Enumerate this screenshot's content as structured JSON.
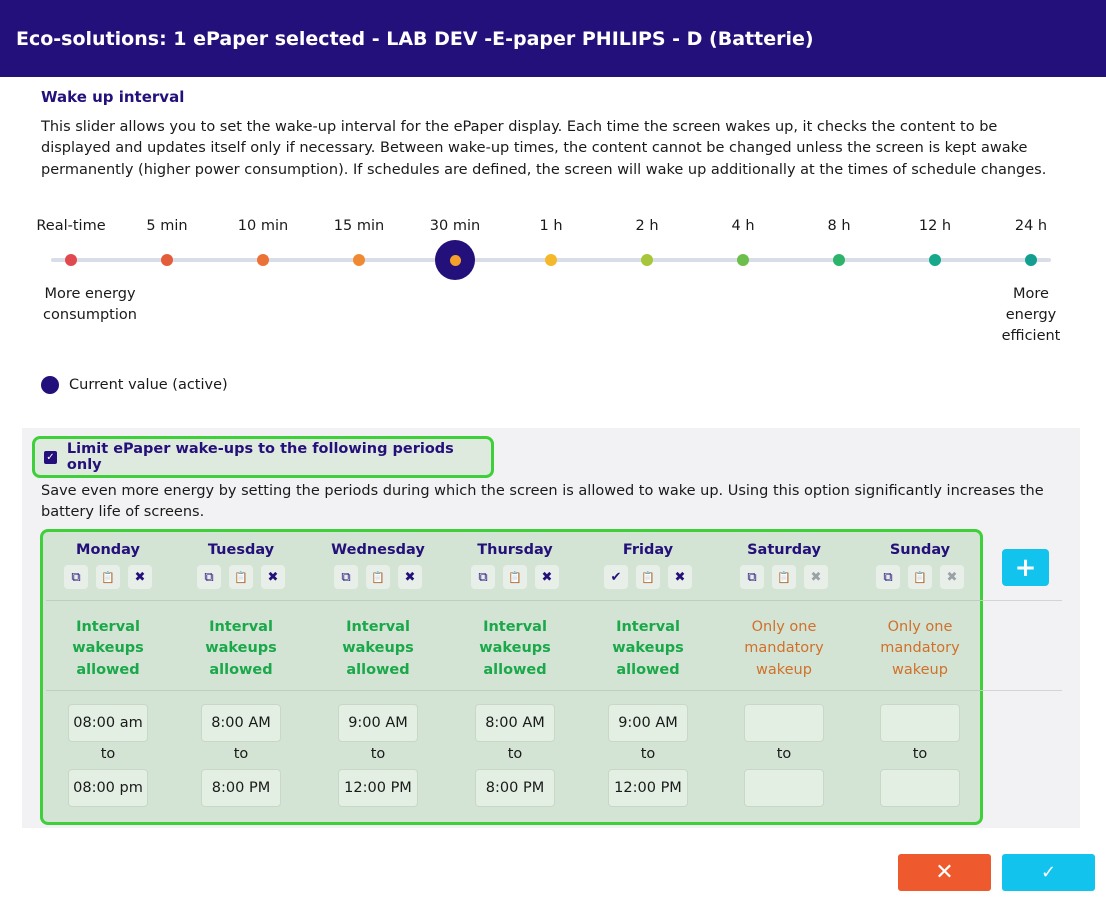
{
  "header": {
    "title": "Eco-solutions: 1 ePaper selected - LAB DEV -E-paper PHILIPS - D (Batterie)"
  },
  "wakeup": {
    "title": "Wake up interval",
    "description": "This slider allows you to set the wake-up interval for the ePaper display. Each time the screen wakes up, it checks the content to be displayed and updates itself only if necessary. Between wake-up times, the content cannot be changed unless the screen is kept awake permanently (higher power consumption). If schedules are defined, the screen will wake up additionally at the times of schedule changes.",
    "steps": [
      {
        "label": "Real-time",
        "color": "#e04a4f"
      },
      {
        "label": "5 min",
        "color": "#e35d3a"
      },
      {
        "label": "10 min",
        "color": "#ea7236"
      },
      {
        "label": "15 min",
        "color": "#f08a32"
      },
      {
        "label": "30 min",
        "color": "#f5a02a"
      },
      {
        "label": "1 h",
        "color": "#f5b82a"
      },
      {
        "label": "2 h",
        "color": "#a7c63a"
      },
      {
        "label": "4 h",
        "color": "#6cbf4a"
      },
      {
        "label": "8 h",
        "color": "#2db36a"
      },
      {
        "label": "12 h",
        "color": "#16a88a"
      },
      {
        "label": "24 h",
        "color": "#139e90"
      }
    ],
    "selected_index": 4,
    "left_end": "More energy consumption",
    "right_end": "More energy efficient",
    "legend": "Current value (active)"
  },
  "limit": {
    "checked": true,
    "label": "Limit ePaper wake-ups to the following periods only",
    "description": "Save even more energy by setting the periods during which the screen is allowed to wake up. Using this option significantly increases the battery life of screens."
  },
  "days": [
    {
      "name": "Monday",
      "icons": [
        "copy-icon",
        "paste-icon",
        "clear-icon"
      ],
      "mode": "Interval wakeups allowed",
      "mode_type": "allowed",
      "from": "08:00 am",
      "to_label": "to",
      "to": "08:00 pm"
    },
    {
      "name": "Tuesday",
      "icons": [
        "copy-icon",
        "paste-icon",
        "clear-icon"
      ],
      "mode": "Interval wakeups allowed",
      "mode_type": "allowed",
      "from": "8:00 AM",
      "to_label": "to",
      "to": "8:00 PM"
    },
    {
      "name": "Wednesday",
      "icons": [
        "copy-icon",
        "paste-icon",
        "clear-icon"
      ],
      "mode": "Interval wakeups allowed",
      "mode_type": "allowed",
      "from": "9:00 AM",
      "to_label": "to",
      "to": "12:00 PM"
    },
    {
      "name": "Thursday",
      "icons": [
        "copy-icon",
        "paste-icon",
        "clear-icon"
      ],
      "mode": "Interval wakeups allowed",
      "mode_type": "allowed",
      "from": "8:00 AM",
      "to_label": "to",
      "to": "8:00 PM"
    },
    {
      "name": "Friday",
      "icons": [
        "check-icon",
        "paste-icon",
        "clear-icon"
      ],
      "mode": "Interval wakeups allowed",
      "mode_type": "allowed",
      "from": "9:00 AM",
      "to_label": "to",
      "to": "12:00 PM"
    },
    {
      "name": "Saturday",
      "icons": [
        "copy-icon",
        "paste-icon",
        "clear-icon-disabled"
      ],
      "mode": "Only one mandatory wakeup",
      "mode_type": "mandatory",
      "from": "",
      "to_label": "to",
      "to": ""
    },
    {
      "name": "Sunday",
      "icons": [
        "copy-icon",
        "paste-icon",
        "clear-icon-disabled"
      ],
      "mode": "Only one mandatory wakeup",
      "mode_type": "mandatory",
      "from": "",
      "to_label": "to",
      "to": ""
    }
  ],
  "buttons": {
    "add": "+",
    "cancel": "✕",
    "ok": "✓"
  }
}
